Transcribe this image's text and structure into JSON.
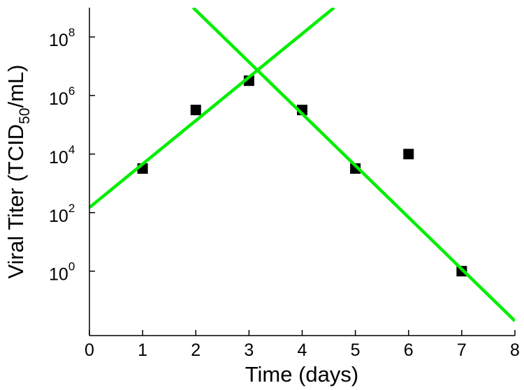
{
  "chart_data": {
    "type": "scatter",
    "xlabel": "Time (days)",
    "ylabel": {
      "prefix": "Viral Titer (TCID",
      "subscript": "50",
      "suffix": "/mL)"
    },
    "xlim": [
      0,
      8
    ],
    "ylim_log10": [
      -2.2,
      9.0
    ],
    "y_scale": "log",
    "grid": false,
    "legend": "none",
    "x_ticks": [
      "0",
      "1",
      "2",
      "3",
      "4",
      "5",
      "6",
      "7",
      "8"
    ],
    "x_tick_values": [
      0,
      1,
      2,
      3,
      4,
      5,
      6,
      7,
      8
    ],
    "y_ticks": [
      {
        "base": "10",
        "exp": "0",
        "value": 1
      },
      {
        "base": "10",
        "exp": "2",
        "value": 100
      },
      {
        "base": "10",
        "exp": "4",
        "value": 10000
      },
      {
        "base": "10",
        "exp": "6",
        "value": 1000000
      },
      {
        "base": "10",
        "exp": "8",
        "value": 100000000
      }
    ],
    "series": [
      {
        "kind": "points",
        "marker": "square",
        "color": "#000000",
        "points": [
          {
            "x": 1,
            "y": 3200
          },
          {
            "x": 2,
            "y": 320000
          },
          {
            "x": 3,
            "y": 3200000
          },
          {
            "x": 4,
            "y": 320000
          },
          {
            "x": 5,
            "y": 3200
          },
          {
            "x": 6,
            "y": 10000
          },
          {
            "x": 7,
            "y": 1
          }
        ]
      },
      {
        "kind": "line",
        "color": "#00ee00",
        "points": [
          {
            "x": 0,
            "y": 150
          },
          {
            "x": 4.6,
            "y": 1000000000
          }
        ]
      },
      {
        "kind": "line",
        "color": "#00ee00",
        "points": [
          {
            "x": 1.95,
            "y": 1000000000
          },
          {
            "x": 8,
            "y": 0.02
          }
        ]
      }
    ]
  }
}
